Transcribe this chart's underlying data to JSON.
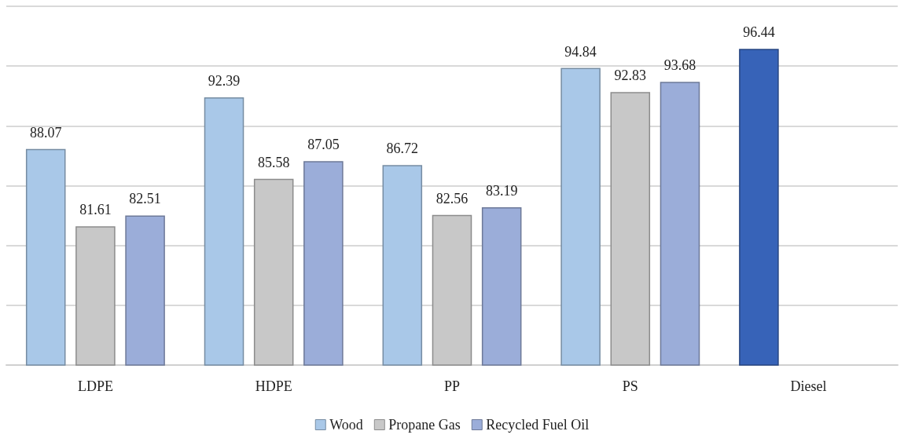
{
  "chart_data": {
    "type": "bar",
    "categories": [
      "LDPE",
      "HDPE",
      "PP",
      "PS",
      "Diesel"
    ],
    "series": [
      {
        "name": "Wood",
        "color": "#a9c8e8",
        "colors": [
          "#a9c8e8",
          "#a9c8e8",
          "#a9c8e8",
          "#a9c8e8",
          "#3763b8"
        ],
        "values": [
          88.07,
          92.39,
          86.72,
          94.84,
          96.44
        ]
      },
      {
        "name": "Propane Gas",
        "color": "#c8c8c8",
        "values": [
          81.61,
          85.58,
          82.56,
          92.83,
          null
        ]
      },
      {
        "name": "Recycled Fuel Oil",
        "color": "#9badd9",
        "values": [
          82.51,
          87.05,
          83.19,
          93.68,
          null
        ]
      }
    ],
    "ylim": [
      70,
      100
    ],
    "yticks": [
      {
        "value": 70,
        "label": null
      },
      {
        "value": 75,
        "label": null
      },
      {
        "value": 80,
        "label": null
      },
      {
        "value": 85,
        "label": null
      },
      {
        "value": 90,
        "label": null
      },
      {
        "value": 95,
        "label": null
      },
      {
        "value": 100,
        "label": null
      }
    ],
    "tick_labels": "x",
    "grid": "y",
    "legend": "bottom",
    "data_labels": true
  }
}
